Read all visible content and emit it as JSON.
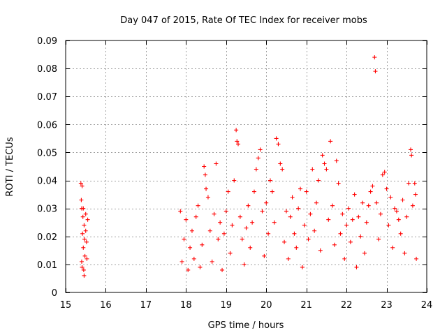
{
  "chart_data": {
    "type": "scatter",
    "title": "Day 047 of 2015, Rate Of TEC Index for receiver mobs",
    "xlabel": "GPS time / hours",
    "ylabel": "ROTI / TECUs",
    "xlim": [
      15,
      24
    ],
    "ylim": [
      0,
      0.09
    ],
    "x_ticks": [
      15,
      16,
      17,
      18,
      19,
      20,
      21,
      22,
      23,
      24
    ],
    "x_tick_labels": [
      "15",
      "16",
      "17",
      "18",
      "19",
      "20",
      "21",
      "22",
      "23",
      "24"
    ],
    "y_ticks": [
      0,
      0.01,
      0.02,
      0.03,
      0.04,
      0.05,
      0.06,
      0.07,
      0.08,
      0.09
    ],
    "y_tick_labels": [
      "0",
      "0.01",
      "0.02",
      "0.03",
      "0.04",
      "0.05",
      "0.06",
      "0.07",
      "0.08",
      "0.09"
    ],
    "grid": true,
    "marker": "+",
    "color": "#ff0000",
    "series": [
      {
        "name": "ROTI",
        "points": [
          [
            15.38,
            0.039
          ],
          [
            15.39,
            0.033
          ],
          [
            15.4,
            0.03
          ],
          [
            15.4,
            0.011
          ],
          [
            15.41,
            0.009
          ],
          [
            15.42,
            0.021
          ],
          [
            15.43,
            0.027
          ],
          [
            15.44,
            0.016
          ],
          [
            15.45,
            0.008
          ],
          [
            15.46,
            0.024
          ],
          [
            15.47,
            0.019
          ],
          [
            15.48,
            0.013
          ],
          [
            15.5,
            0.028
          ],
          [
            15.52,
            0.018
          ],
          [
            15.53,
            0.012
          ],
          [
            15.41,
            0.038
          ],
          [
            15.44,
            0.03
          ],
          [
            15.46,
            0.006
          ],
          [
            15.5,
            0.022
          ],
          [
            15.55,
            0.026
          ],
          [
            17.86,
            0.029
          ],
          [
            17.9,
            0.011
          ],
          [
            17.95,
            0.019
          ],
          [
            18.0,
            0.026
          ],
          [
            18.05,
            0.008
          ],
          [
            18.1,
            0.016
          ],
          [
            18.15,
            0.022
          ],
          [
            18.2,
            0.012
          ],
          [
            18.25,
            0.027
          ],
          [
            18.3,
            0.031
          ],
          [
            18.35,
            0.009
          ],
          [
            18.4,
            0.017
          ],
          [
            18.45,
            0.045
          ],
          [
            18.48,
            0.042
          ],
          [
            18.5,
            0.037
          ],
          [
            18.55,
            0.034
          ],
          [
            18.6,
            0.022
          ],
          [
            18.65,
            0.011
          ],
          [
            18.7,
            0.028
          ],
          [
            18.75,
            0.046
          ],
          [
            18.8,
            0.019
          ],
          [
            18.85,
            0.025
          ],
          [
            18.9,
            0.008
          ],
          [
            18.95,
            0.021
          ],
          [
            19.0,
            0.029
          ],
          [
            19.05,
            0.036
          ],
          [
            19.1,
            0.014
          ],
          [
            19.15,
            0.024
          ],
          [
            19.2,
            0.04
          ],
          [
            19.25,
            0.058
          ],
          [
            19.27,
            0.054
          ],
          [
            19.3,
            0.053
          ],
          [
            19.35,
            0.027
          ],
          [
            19.4,
            0.019
          ],
          [
            19.45,
            0.01
          ],
          [
            19.5,
            0.023
          ],
          [
            19.55,
            0.031
          ],
          [
            19.6,
            0.016
          ],
          [
            19.65,
            0.025
          ],
          [
            19.7,
            0.036
          ],
          [
            19.75,
            0.044
          ],
          [
            19.8,
            0.048
          ],
          [
            19.85,
            0.051
          ],
          [
            19.9,
            0.029
          ],
          [
            19.95,
            0.013
          ],
          [
            20.0,
            0.032
          ],
          [
            20.05,
            0.021
          ],
          [
            20.1,
            0.04
          ],
          [
            20.15,
            0.036
          ],
          [
            20.2,
            0.025
          ],
          [
            20.25,
            0.055
          ],
          [
            20.3,
            0.053
          ],
          [
            20.35,
            0.046
          ],
          [
            20.4,
            0.044
          ],
          [
            20.45,
            0.018
          ],
          [
            20.5,
            0.029
          ],
          [
            20.55,
            0.012
          ],
          [
            20.6,
            0.027
          ],
          [
            20.65,
            0.034
          ],
          [
            20.7,
            0.021
          ],
          [
            20.75,
            0.016
          ],
          [
            20.8,
            0.03
          ],
          [
            20.85,
            0.037
          ],
          [
            20.9,
            0.009
          ],
          [
            20.95,
            0.024
          ],
          [
            21.0,
            0.036
          ],
          [
            21.05,
            0.019
          ],
          [
            21.1,
            0.028
          ],
          [
            21.15,
            0.044
          ],
          [
            21.2,
            0.022
          ],
          [
            21.25,
            0.032
          ],
          [
            21.3,
            0.04
          ],
          [
            21.35,
            0.015
          ],
          [
            21.4,
            0.049
          ],
          [
            21.45,
            0.046
          ],
          [
            21.5,
            0.044
          ],
          [
            21.55,
            0.026
          ],
          [
            21.6,
            0.054
          ],
          [
            21.65,
            0.031
          ],
          [
            21.7,
            0.017
          ],
          [
            21.75,
            0.047
          ],
          [
            21.8,
            0.039
          ],
          [
            21.85,
            0.021
          ],
          [
            21.9,
            0.028
          ],
          [
            21.95,
            0.012
          ],
          [
            22.0,
            0.024
          ],
          [
            22.05,
            0.03
          ],
          [
            22.1,
            0.018
          ],
          [
            22.15,
            0.026
          ],
          [
            22.2,
            0.035
          ],
          [
            22.25,
            0.009
          ],
          [
            22.3,
            0.027
          ],
          [
            22.35,
            0.02
          ],
          [
            22.4,
            0.032
          ],
          [
            22.45,
            0.014
          ],
          [
            22.5,
            0.025
          ],
          [
            22.55,
            0.031
          ],
          [
            22.6,
            0.036
          ],
          [
            22.65,
            0.038
          ],
          [
            22.7,
            0.084
          ],
          [
            22.72,
            0.079
          ],
          [
            22.75,
            0.032
          ],
          [
            22.8,
            0.019
          ],
          [
            22.85,
            0.028
          ],
          [
            22.9,
            0.042
          ],
          [
            22.95,
            0.043
          ],
          [
            23.0,
            0.037
          ],
          [
            23.05,
            0.024
          ],
          [
            23.1,
            0.034
          ],
          [
            23.15,
            0.016
          ],
          [
            23.2,
            0.03
          ],
          [
            23.25,
            0.029
          ],
          [
            23.3,
            0.026
          ],
          [
            23.35,
            0.021
          ],
          [
            23.4,
            0.033
          ],
          [
            23.45,
            0.014
          ],
          [
            23.5,
            0.027
          ],
          [
            23.55,
            0.039
          ],
          [
            23.6,
            0.051
          ],
          [
            23.62,
            0.049
          ],
          [
            23.65,
            0.031
          ],
          [
            23.7,
            0.039
          ],
          [
            23.72,
            0.035
          ],
          [
            23.74,
            0.012
          ]
        ]
      }
    ]
  }
}
